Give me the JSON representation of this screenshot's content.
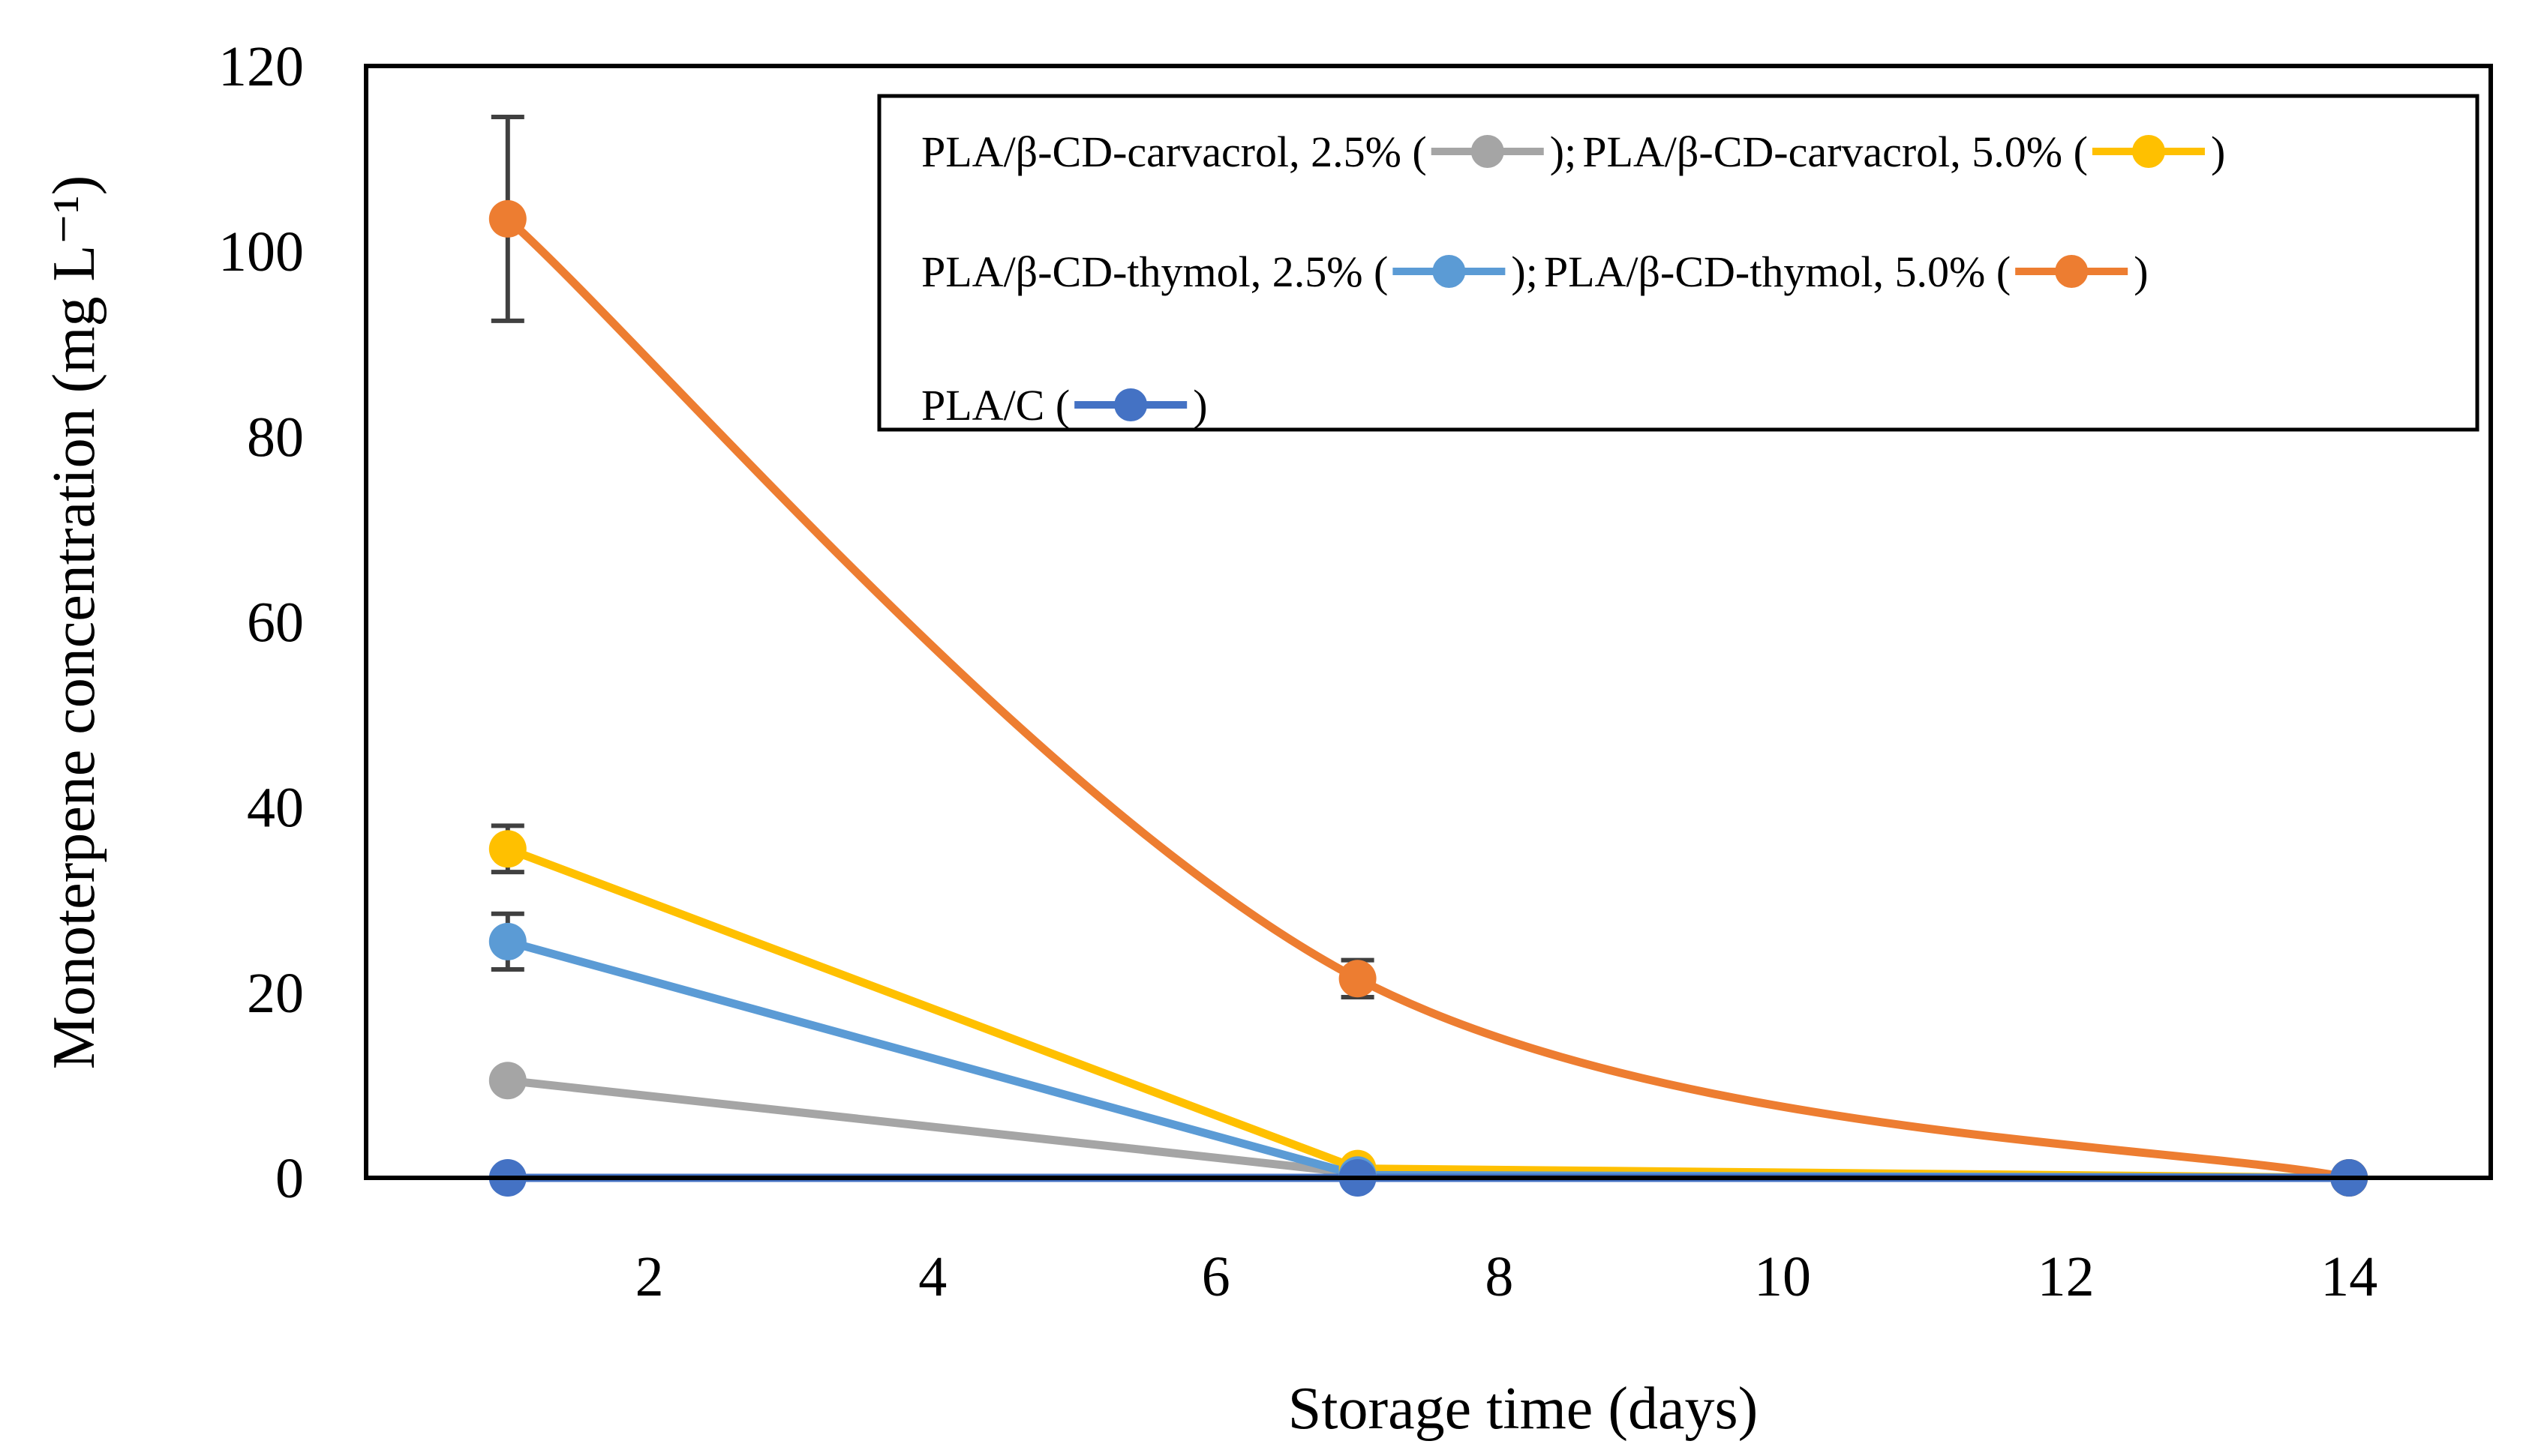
{
  "chart_data": {
    "type": "line",
    "title": "",
    "xlabel": "Storage time (days)",
    "ylabel": "Monoterpene concentration (mg L⁻¹)",
    "xlim": [
      0,
      15
    ],
    "ylim": [
      0,
      120
    ],
    "xticks": [
      2,
      4,
      6,
      8,
      10,
      12,
      14
    ],
    "yticks": [
      0,
      20,
      40,
      60,
      80,
      100,
      120
    ],
    "x": [
      1,
      7,
      14
    ],
    "grid": false,
    "legend_position": "top-right",
    "series": [
      {
        "name": "PLA/β-CD-carvacrol,  2.5%",
        "color": "#A5A5A5",
        "values": [
          10.5,
          0.5,
          0
        ],
        "errors": [
          0,
          0,
          0
        ],
        "smooth": false
      },
      {
        "name": "PLA/β-CD-carvacrol,  5.0%",
        "color": "#FFC000",
        "values": [
          35.5,
          1.0,
          0
        ],
        "errors": [
          0,
          0,
          0
        ],
        "smooth": false
      },
      {
        "name": "PLA/β-CD-thymol,  2.5%",
        "color": "#5B9BD5",
        "values": [
          25.5,
          0.3,
          0
        ],
        "errors": [
          3,
          0,
          0
        ],
        "smooth": false
      },
      {
        "name": "PLA/β-CD-thymol,  5.0%",
        "color": "#ED7D31",
        "values": [
          103.5,
          21.5,
          0
        ],
        "errors": [
          11,
          2,
          0
        ],
        "smooth": true
      },
      {
        "name": "PLA/C",
        "color": "#4472C4",
        "values": [
          0,
          0,
          0
        ],
        "errors": [
          0,
          0,
          0
        ],
        "smooth": false
      }
    ],
    "error_bar_extra": [
      {
        "series": 1,
        "index": 0,
        "error": 2.5
      }
    ],
    "legend_rows": [
      [
        {
          "text": "PLA/β-CD-carvacrol,  2.5% (",
          "series": 0,
          "after": "); "
        },
        {
          "text": "PLA/β-CD-carvacrol,  5.0% (",
          "series": 1,
          "after": ")"
        }
      ],
      [
        {
          "text": "PLA/β-CD-thymol,  2.5% (",
          "series": 2,
          "after": "); "
        },
        {
          "text": "PLA/β-CD-thymol,  5.0% (",
          "series": 3,
          "after": ")"
        }
      ],
      [
        {
          "text": "PLA/C (",
          "series": 4,
          "after": ")"
        }
      ]
    ]
  }
}
